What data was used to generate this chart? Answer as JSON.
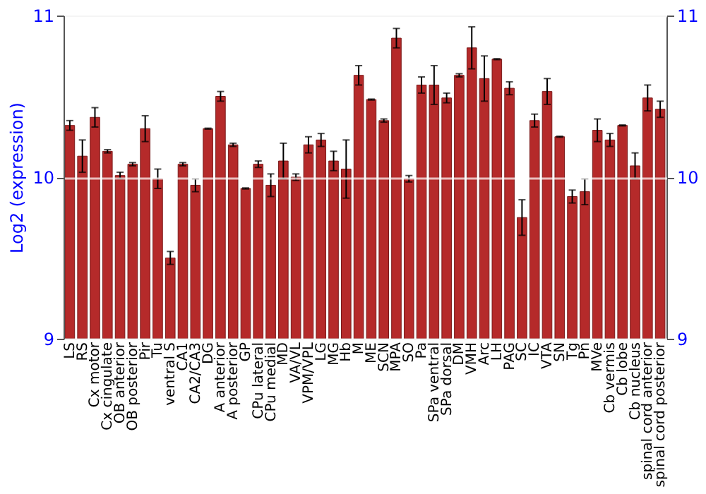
{
  "chart_data": {
    "type": "bar",
    "ylabel": "Log2 (expression)",
    "categories": [
      "LS",
      "RS",
      "Cx motor",
      "Cx cingulate",
      "OB anterior",
      "OB posterior",
      "Pir",
      "Tu",
      "ventral S",
      "CA1",
      "CA2/CA3",
      "DG",
      "A anterior",
      "A posterior",
      "GP",
      "CPu lateral",
      "CPu medial",
      "MD",
      "VA/VL",
      "VPM/VPL",
      "LG",
      "MG",
      "Hb",
      "M",
      "ME",
      "SCN",
      "MPA",
      "SO",
      "Pa",
      "SPa ventral",
      "SPa dorsal",
      "DM",
      "VMH",
      "Arc",
      "LH",
      "PAG",
      "SC",
      "IC",
      "VTA",
      "SN",
      "Tg",
      "Pn",
      "MVe",
      "Cb vermis",
      "Cb lobe",
      "Cb nucleus",
      "spinal cord anterior",
      "spinal cord posterior"
    ],
    "values": [
      10.32,
      10.13,
      10.37,
      10.16,
      10.01,
      10.08,
      10.3,
      9.99,
      9.5,
      10.08,
      9.95,
      10.3,
      10.5,
      10.2,
      9.93,
      10.08,
      9.95,
      10.1,
      10.0,
      10.2,
      10.23,
      10.1,
      10.05,
      10.63,
      10.48,
      10.35,
      10.86,
      9.99,
      10.57,
      10.57,
      10.49,
      10.63,
      10.8,
      10.61,
      10.73,
      10.55,
      9.75,
      10.35,
      10.53,
      10.25,
      9.88,
      9.91,
      10.29,
      10.23,
      10.32,
      10.07,
      10.49,
      10.42
    ],
    "errors": [
      0.03,
      0.1,
      0.06,
      0.01,
      0.02,
      0.01,
      0.08,
      0.06,
      0.04,
      0.01,
      0.04,
      0.003,
      0.03,
      0.01,
      0.003,
      0.02,
      0.07,
      0.11,
      0.02,
      0.05,
      0.04,
      0.06,
      0.18,
      0.06,
      0.003,
      0.01,
      0.06,
      0.02,
      0.05,
      0.12,
      0.03,
      0.01,
      0.13,
      0.14,
      0.003,
      0.04,
      0.11,
      0.04,
      0.08,
      0.003,
      0.04,
      0.08,
      0.07,
      0.04,
      0.003,
      0.08,
      0.08,
      0.05
    ],
    "color": "#b52a2a",
    "ylim": [
      9,
      11
    ],
    "yticks": [
      9,
      10,
      11
    ],
    "y2lim": [
      9,
      11
    ],
    "y2ticks": [
      9,
      10,
      11
    ],
    "grid": "y"
  }
}
